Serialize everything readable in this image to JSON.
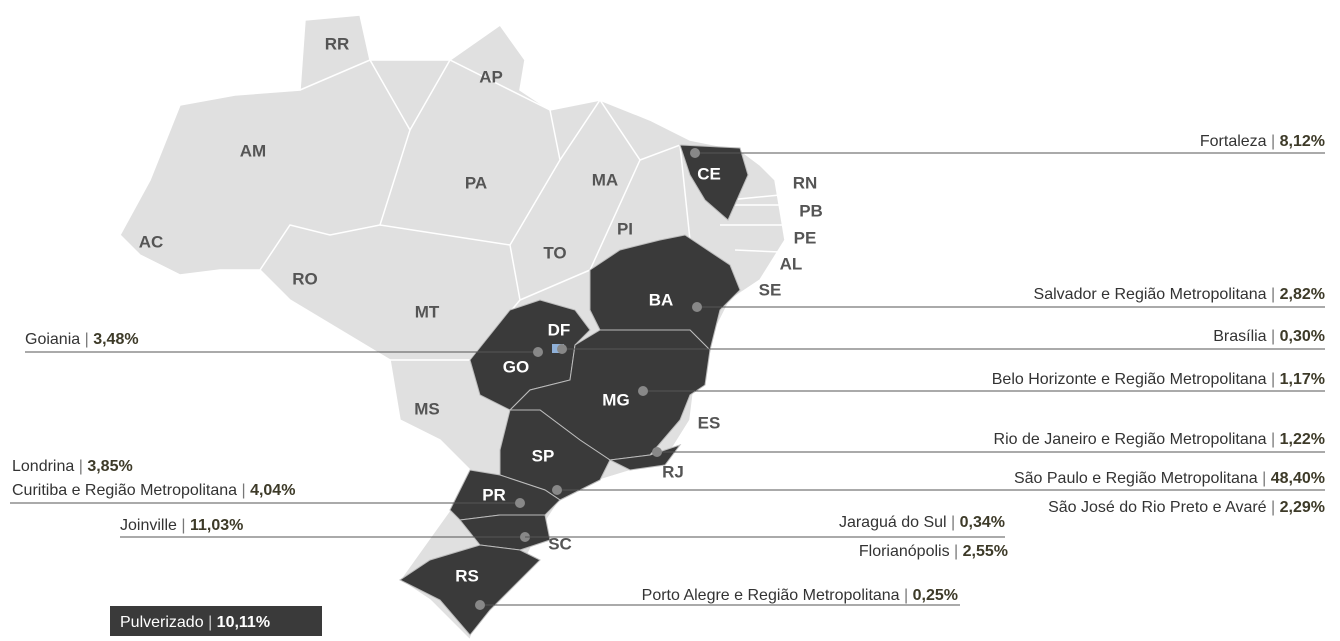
{
  "separator": "|",
  "states": [
    "RR",
    "AP",
    "AM",
    "PA",
    "MA",
    "CE",
    "RN",
    "PB",
    "PE",
    "AL",
    "SE",
    "PI",
    "TO",
    "AC",
    "RO",
    "MT",
    "BA",
    "DF",
    "GO",
    "MG",
    "MS",
    "ES",
    "SP",
    "RJ",
    "PR",
    "SC",
    "RS"
  ],
  "callouts": [
    {
      "city": "Fortaleza",
      "value": "8,12%"
    },
    {
      "city": "Salvador e Região Metropolitana",
      "value": "2,82%"
    },
    {
      "city": "Brasília",
      "value": "0,30%"
    },
    {
      "city": "Goiania",
      "value": "3,48%"
    },
    {
      "city": "Belo Horizonte e Região Metropolitana",
      "value": "1,17%"
    },
    {
      "city": "Rio de Janeiro e Região Metropolitana",
      "value": "1,22%"
    },
    {
      "city": "Londrina",
      "value": "3,85%"
    },
    {
      "city": "Curitiba e Região Metropolitana",
      "value": "4,04%"
    },
    {
      "city": "São Paulo e Região Metropolitana",
      "value": "48,40%"
    },
    {
      "city": "São José do Rio Preto e Avaré",
      "value": "2,29%"
    },
    {
      "city": "Joinville",
      "value": "11,03%"
    },
    {
      "city": "Jaraguá do Sul",
      "value": "0,34%"
    },
    {
      "city": "Florianópolis",
      "value": "2,55%"
    },
    {
      "city": "Porto Alegre e Região Metropolitana",
      "value": "0,25%"
    }
  ],
  "pulverized": {
    "city": "Pulverizado",
    "value": "10,11%"
  }
}
